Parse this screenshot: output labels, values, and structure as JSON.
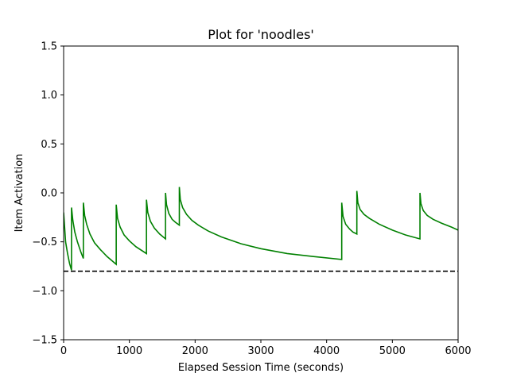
{
  "chart_data": {
    "type": "line",
    "title": "Plot for 'noodles'",
    "xlabel": "Elapsed Session Time (seconds)",
    "ylabel": "Item Activation",
    "xlim": [
      0,
      6000
    ],
    "ylim": [
      -1.5,
      1.5
    ],
    "xticks": [
      0,
      1000,
      2000,
      3000,
      4000,
      5000,
      6000
    ],
    "yticks": [
      -1.5,
      -1.0,
      -0.5,
      0.0,
      0.5,
      1.0,
      1.5
    ],
    "grid": false,
    "series": [
      {
        "color": "#008000",
        "style": "solid",
        "points": [
          [
            0,
            -0.2
          ],
          [
            30,
            -0.5
          ],
          [
            60,
            -0.62
          ],
          [
            90,
            -0.72
          ],
          [
            120,
            -0.79
          ],
          [
            120,
            -0.15
          ],
          [
            140,
            -0.28
          ],
          [
            170,
            -0.4
          ],
          [
            210,
            -0.5
          ],
          [
            260,
            -0.6
          ],
          [
            300,
            -0.67
          ],
          [
            300,
            -0.1
          ],
          [
            320,
            -0.23
          ],
          [
            350,
            -0.32
          ],
          [
            400,
            -0.42
          ],
          [
            470,
            -0.51
          ],
          [
            560,
            -0.58
          ],
          [
            660,
            -0.65
          ],
          [
            800,
            -0.73
          ],
          [
            800,
            -0.12
          ],
          [
            820,
            -0.26
          ],
          [
            860,
            -0.35
          ],
          [
            920,
            -0.43
          ],
          [
            1000,
            -0.49
          ],
          [
            1100,
            -0.55
          ],
          [
            1260,
            -0.62
          ],
          [
            1260,
            -0.07
          ],
          [
            1280,
            -0.2
          ],
          [
            1320,
            -0.29
          ],
          [
            1380,
            -0.36
          ],
          [
            1460,
            -0.42
          ],
          [
            1550,
            -0.47
          ],
          [
            1550,
            0.0
          ],
          [
            1565,
            -0.12
          ],
          [
            1600,
            -0.21
          ],
          [
            1650,
            -0.27
          ],
          [
            1700,
            -0.3
          ],
          [
            1760,
            -0.33
          ],
          [
            1760,
            0.06
          ],
          [
            1775,
            -0.07
          ],
          [
            1810,
            -0.15
          ],
          [
            1870,
            -0.22
          ],
          [
            1950,
            -0.28
          ],
          [
            2050,
            -0.33
          ],
          [
            2200,
            -0.39
          ],
          [
            2400,
            -0.45
          ],
          [
            2700,
            -0.52
          ],
          [
            3000,
            -0.57
          ],
          [
            3400,
            -0.62
          ],
          [
            3800,
            -0.65
          ],
          [
            4230,
            -0.68
          ],
          [
            4230,
            -0.1
          ],
          [
            4250,
            -0.24
          ],
          [
            4290,
            -0.32
          ],
          [
            4350,
            -0.37
          ],
          [
            4400,
            -0.4
          ],
          [
            4460,
            -0.42
          ],
          [
            4460,
            0.02
          ],
          [
            4475,
            -0.1
          ],
          [
            4510,
            -0.17
          ],
          [
            4570,
            -0.22
          ],
          [
            4650,
            -0.26
          ],
          [
            4800,
            -0.32
          ],
          [
            5000,
            -0.38
          ],
          [
            5200,
            -0.43
          ],
          [
            5420,
            -0.47
          ],
          [
            5420,
            0.0
          ],
          [
            5435,
            -0.11
          ],
          [
            5470,
            -0.18
          ],
          [
            5530,
            -0.23
          ],
          [
            5620,
            -0.27
          ],
          [
            5750,
            -0.31
          ],
          [
            5900,
            -0.35
          ],
          [
            6000,
            -0.38
          ]
        ]
      },
      {
        "color": "#000000",
        "style": "dashed",
        "points": [
          [
            0,
            -0.8
          ],
          [
            6000,
            -0.8
          ]
        ]
      }
    ]
  }
}
